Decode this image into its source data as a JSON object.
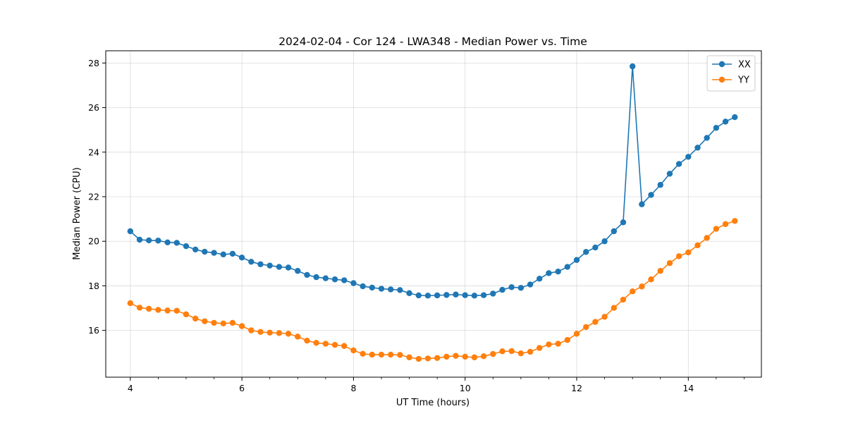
{
  "chart_data": {
    "type": "line",
    "title": "2024-02-04 - Cor 124 - LWA348 - Median Power vs. Time",
    "xlabel": "UT Time (hours)",
    "ylabel": "Median Power (CPU)",
    "xlim": [
      3.56,
      15.31
    ],
    "ylim": [
      13.9,
      28.55
    ],
    "xticks": [
      4,
      6,
      8,
      10,
      12,
      14
    ],
    "xtick_labels": [
      "4",
      "6",
      "8",
      "10",
      "12",
      "14"
    ],
    "xminor_step": 0.5,
    "yticks": [
      16,
      18,
      20,
      22,
      24,
      26,
      28
    ],
    "ytick_labels": [
      "16",
      "18",
      "20",
      "22",
      "24",
      "26",
      "28"
    ],
    "grid": true,
    "legend_position": "top-right",
    "x": [
      4.0,
      4.167,
      4.333,
      4.5,
      4.667,
      4.833,
      5.0,
      5.167,
      5.333,
      5.5,
      5.667,
      5.833,
      6.0,
      6.167,
      6.333,
      6.5,
      6.667,
      6.833,
      7.0,
      7.167,
      7.333,
      7.5,
      7.667,
      7.833,
      8.0,
      8.167,
      8.333,
      8.5,
      8.667,
      8.833,
      9.0,
      9.167,
      9.333,
      9.5,
      9.667,
      9.833,
      10.0,
      10.167,
      10.333,
      10.5,
      10.667,
      10.833,
      11.0,
      11.167,
      11.333,
      11.5,
      11.667,
      11.833,
      12.0,
      12.167,
      12.333,
      12.5,
      12.667,
      12.833,
      13.0,
      13.167,
      13.333,
      13.5,
      13.667,
      13.833,
      14.0,
      14.167,
      14.333,
      14.5,
      14.667,
      14.833
    ],
    "series": [
      {
        "name": "XX",
        "color": "#1f77b4",
        "values": [
          20.45,
          20.07,
          20.04,
          20.03,
          19.95,
          19.93,
          19.78,
          19.63,
          19.53,
          19.48,
          19.41,
          19.44,
          19.27,
          19.08,
          18.97,
          18.91,
          18.85,
          18.82,
          18.67,
          18.49,
          18.39,
          18.34,
          18.29,
          18.25,
          18.12,
          17.98,
          17.92,
          17.87,
          17.84,
          17.81,
          17.67,
          17.57,
          17.56,
          17.57,
          17.59,
          17.61,
          17.58,
          17.56,
          17.58,
          17.65,
          17.82,
          17.94,
          17.91,
          18.06,
          18.32,
          18.57,
          18.64,
          18.85,
          19.16,
          19.52,
          19.72,
          20.0,
          20.45,
          20.85,
          27.85,
          21.66,
          22.08,
          22.53,
          23.03,
          23.47,
          23.79,
          24.2,
          24.64,
          25.09,
          25.37,
          25.57
        ]
      },
      {
        "name": "YY",
        "color": "#ff7f0e",
        "values": [
          17.22,
          17.02,
          16.97,
          16.92,
          16.89,
          16.88,
          16.72,
          16.53,
          16.41,
          16.34,
          16.31,
          16.34,
          16.19,
          16.0,
          15.93,
          15.9,
          15.88,
          15.85,
          15.72,
          15.54,
          15.44,
          15.4,
          15.35,
          15.3,
          15.1,
          14.95,
          14.91,
          14.91,
          14.91,
          14.9,
          14.79,
          14.72,
          14.74,
          14.76,
          14.82,
          14.86,
          14.82,
          14.79,
          14.84,
          14.94,
          15.06,
          15.07,
          14.97,
          15.04,
          15.21,
          15.37,
          15.4,
          15.57,
          15.85,
          16.15,
          16.38,
          16.61,
          17.01,
          17.38,
          17.75,
          17.97,
          18.29,
          18.67,
          19.02,
          19.33,
          19.5,
          19.82,
          20.15,
          20.56,
          20.77,
          20.91
        ]
      }
    ]
  }
}
